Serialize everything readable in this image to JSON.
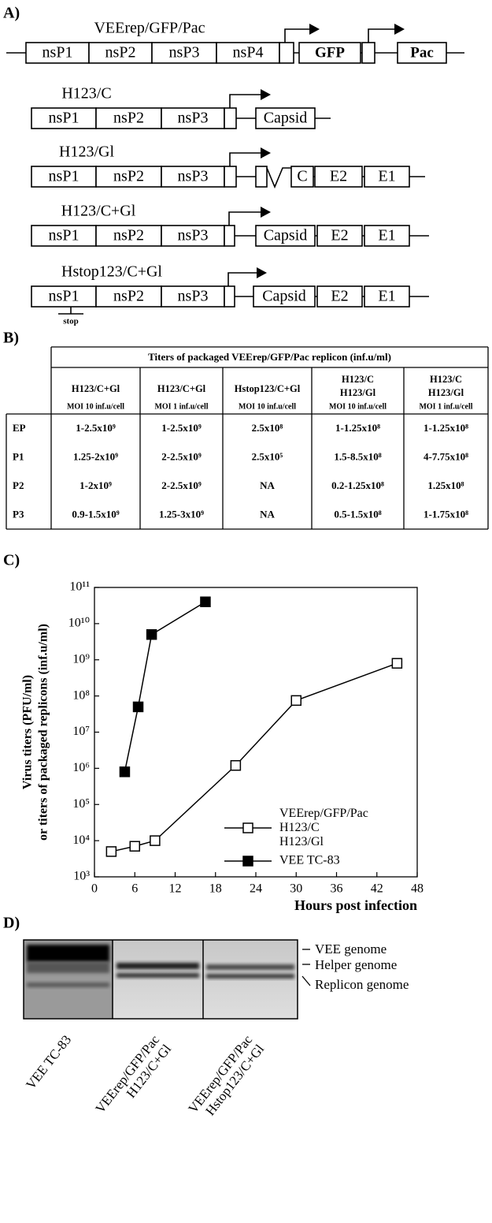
{
  "panel_a": {
    "label": "A)",
    "constructs": [
      {
        "name": "VEErep/GFP/Pac",
        "segments": [
          "nsP1",
          "nsP2",
          "nsP3",
          "nsP4",
          "GFP",
          "Pac"
        ]
      },
      {
        "name": "H123/C",
        "segments": [
          "nsP1",
          "nsP2",
          "nsP3",
          "Capsid"
        ]
      },
      {
        "name": "H123/Gl",
        "segments": [
          "nsP1",
          "nsP2",
          "nsP3",
          "C",
          "E2",
          "E1"
        ]
      },
      {
        "name": "H123/C+Gl",
        "segments": [
          "nsP1",
          "nsP2",
          "nsP3",
          "Capsid",
          "E2",
          "E1"
        ]
      },
      {
        "name": "Hstop123/C+Gl",
        "segments": [
          "nsP1",
          "nsP2",
          "nsP3",
          "Capsid",
          "E2",
          "E1"
        ],
        "mutation": "stop"
      }
    ]
  },
  "panel_b": {
    "label": "B)",
    "table": {
      "title": "Titers of packaged VEErep/GFP/Pac replicon (inf.u/ml)",
      "columns": [
        {
          "names": [
            "H123/C+Gl"
          ],
          "moi": "MOI 10 inf.u/cell"
        },
        {
          "names": [
            "H123/C+Gl"
          ],
          "moi": "MOI 1 inf.u/cell"
        },
        {
          "names": [
            "Hstop123/C+Gl"
          ],
          "moi": "MOI 10 inf.u/cell"
        },
        {
          "names": [
            "H123/C",
            "H123/Gl"
          ],
          "moi": "MOI 10 inf.u/cell"
        },
        {
          "names": [
            "H123/C",
            "H123/Gl"
          ],
          "moi": "MOI 1 inf.u/cell"
        }
      ],
      "rows": [
        {
          "label": "EP",
          "cells": [
            "1-2.5x10⁹",
            "1-2.5x10⁹",
            "2.5x10⁸",
            "1-1.25x10⁸",
            "1-1.25x10⁸"
          ]
        },
        {
          "label": "P1",
          "cells": [
            "1.25-2x10⁹",
            "2-2.5x10⁹",
            "2.5x10⁵",
            "1.5-8.5x10⁸",
            "4-7.75x10⁸"
          ]
        },
        {
          "label": "P2",
          "cells": [
            "1-2x10⁹",
            "2-2.5x10⁹",
            "NA",
            "0.2-1.25x10⁸",
            "1.25x10⁸"
          ]
        },
        {
          "label": "P3",
          "cells": [
            "0.9-1.5x10⁹",
            "1.25-3x10⁹",
            "NA",
            "0.5-1.5x10⁸",
            "1-1.75x10⁸"
          ]
        }
      ]
    }
  },
  "chart_data": {
    "type": "line",
    "panel_label": "C)",
    "x_label": "Hours post infection",
    "y_label": [
      "Virus titers (PFU/ml)",
      "or titers of packaged replicons (inf.u/ml)"
    ],
    "y_scale": "log",
    "xlim": [
      0,
      48
    ],
    "xticks": [
      0,
      6,
      12,
      18,
      24,
      30,
      36,
      42,
      48
    ],
    "ylim": [
      1000,
      100000000000
    ],
    "yticks": [
      {
        "value": 1000,
        "label": "10³"
      },
      {
        "value": 10000,
        "label": "10⁴"
      },
      {
        "value": 100000,
        "label": "10⁵"
      },
      {
        "value": 1000000,
        "label": "10⁶"
      },
      {
        "value": 10000000,
        "label": "10⁷"
      },
      {
        "value": 100000000,
        "label": "10⁸"
      },
      {
        "value": 1000000000,
        "label": "10⁹"
      },
      {
        "value": 10000000000,
        "label": "10¹⁰"
      },
      {
        "value": 100000000000,
        "label": "10¹¹"
      }
    ],
    "legend_position": "lower right",
    "series": [
      {
        "name": "VEErep/GFP/Pac\nH123/C\nH123/Gl",
        "color": "#000000",
        "marker_fill": "#ffffff",
        "x": [
          2.5,
          6,
          9,
          21,
          30,
          45
        ],
        "values": [
          5000,
          7000,
          10000,
          1200000,
          75000000,
          800000000
        ]
      },
      {
        "name": "VEE TC-83",
        "color": "#000000",
        "marker_fill": "#000000",
        "x": [
          4.5,
          6.5,
          8.5,
          16.5
        ],
        "values": [
          800000,
          50000000,
          5000000000,
          40000000000
        ]
      }
    ]
  },
  "panel_d": {
    "label": "D)",
    "bands": [
      "VEE genome",
      "Helper genome",
      "Replicon genome"
    ],
    "lanes": [
      [
        "VEE TC-83"
      ],
      [
        "VEErep/GFP/Pac",
        "H123/C+Gl"
      ],
      [
        "VEErep/GFP/Pac",
        "Hstop123/C+Gl"
      ]
    ]
  }
}
